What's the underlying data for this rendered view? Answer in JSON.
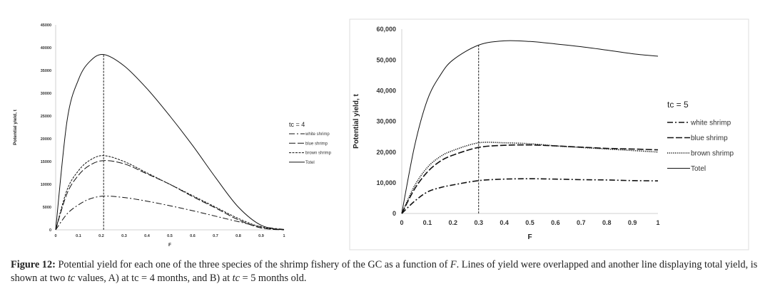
{
  "charts_text": {
    "caption": {
      "label": "Figure 12:",
      "p1": " Potential yield for each one of the three species of the shrimp fishery of the GC as a function of ",
      "F": "F",
      "p2": ". Lines of yield were overlapped and another line displaying total yield, is shown at two ",
      "tc1": "tc",
      "p3": " values, A) at tc = 4 months, and B) at ",
      "tc2": "tc",
      "p4": " = 5 months old."
    }
  },
  "chart_data": [
    {
      "type": "line",
      "xlabel": "F",
      "ylabel": "Potential yield, t",
      "legend_title": "tc = 4",
      "legend_placement": "right",
      "xlim": [
        0,
        1
      ],
      "ylim": [
        0,
        45000
      ],
      "xticks": [
        "0",
        "0.1",
        "0.2",
        "0.3",
        "0.4",
        "0.5",
        "0.6",
        "0.7",
        "0.8",
        "0.9",
        "1"
      ],
      "yticks": [
        "0",
        "5000",
        "10000",
        "15000",
        "20000",
        "25000",
        "30000",
        "35000",
        "40000",
        "45000"
      ],
      "grid": false,
      "reference_line_x": 0.21,
      "x": [
        0,
        0.05,
        0.1,
        0.15,
        0.21,
        0.3,
        0.4,
        0.5,
        0.6,
        0.7,
        0.8,
        0.9,
        1
      ],
      "series": [
        {
          "name": "white shrimp",
          "style": "dash-dot",
          "values": [
            0,
            3500,
            5500,
            6800,
            7400,
            7100,
            6300,
            5300,
            4200,
            3000,
            1800,
            700,
            100
          ]
        },
        {
          "name": "blue shrimp",
          "style": "long-dash",
          "values": [
            0,
            8000,
            12000,
            14200,
            15200,
            14500,
            12300,
            10000,
            7300,
            4800,
            2200,
            400,
            0
          ]
        },
        {
          "name": "brown shrimp",
          "style": "short-dash",
          "values": [
            0,
            8800,
            13000,
            15300,
            16300,
            15000,
            12500,
            10000,
            7500,
            5000,
            2500,
            600,
            0
          ]
        },
        {
          "name": "Totel",
          "style": "solid",
          "values": [
            0,
            24000,
            33000,
            37000,
            38500,
            36000,
            31000,
            25000,
            18500,
            11500,
            5000,
            1000,
            0
          ]
        }
      ]
    },
    {
      "type": "line",
      "xlabel": "F",
      "ylabel": "Potential yield, t",
      "legend_title": "tc = 5",
      "legend_placement": "right",
      "xlim": [
        0,
        1
      ],
      "ylim": [
        0,
        60000
      ],
      "xticks": [
        "0",
        "0.1",
        "0.2",
        "0.3",
        "0.4",
        "0.5",
        "0.6",
        "0.7",
        "0.8",
        "0.9",
        "1"
      ],
      "yticks": [
        "0",
        "10,000",
        "20,000",
        "30,000",
        "40,000",
        "50,000",
        "60,000"
      ],
      "grid": false,
      "reference_line_x": 0.3,
      "x": [
        0,
        0.05,
        0.1,
        0.15,
        0.2,
        0.3,
        0.4,
        0.5,
        0.6,
        0.7,
        0.8,
        0.9,
        1
      ],
      "series": [
        {
          "name": "white shrimp",
          "style": "dash-dot",
          "values": [
            0,
            4000,
            7000,
            8400,
            9300,
            10700,
            11200,
            11300,
            11200,
            11000,
            10900,
            10700,
            10600
          ]
        },
        {
          "name": "blue shrimp",
          "style": "long-dash",
          "values": [
            0,
            8000,
            13500,
            17000,
            19000,
            21500,
            22200,
            22300,
            22000,
            21600,
            21200,
            21000,
            20700
          ]
        },
        {
          "name": "brown shrimp",
          "style": "dotted",
          "values": [
            0,
            9000,
            15000,
            18500,
            20500,
            23000,
            23000,
            22700,
            22000,
            21500,
            21000,
            20500,
            20000
          ]
        },
        {
          "name": "Totel",
          "style": "solid",
          "values": [
            0,
            22000,
            37000,
            45000,
            50000,
            54800,
            56200,
            56000,
            55200,
            54300,
            53200,
            52000,
            51200
          ]
        }
      ]
    }
  ]
}
